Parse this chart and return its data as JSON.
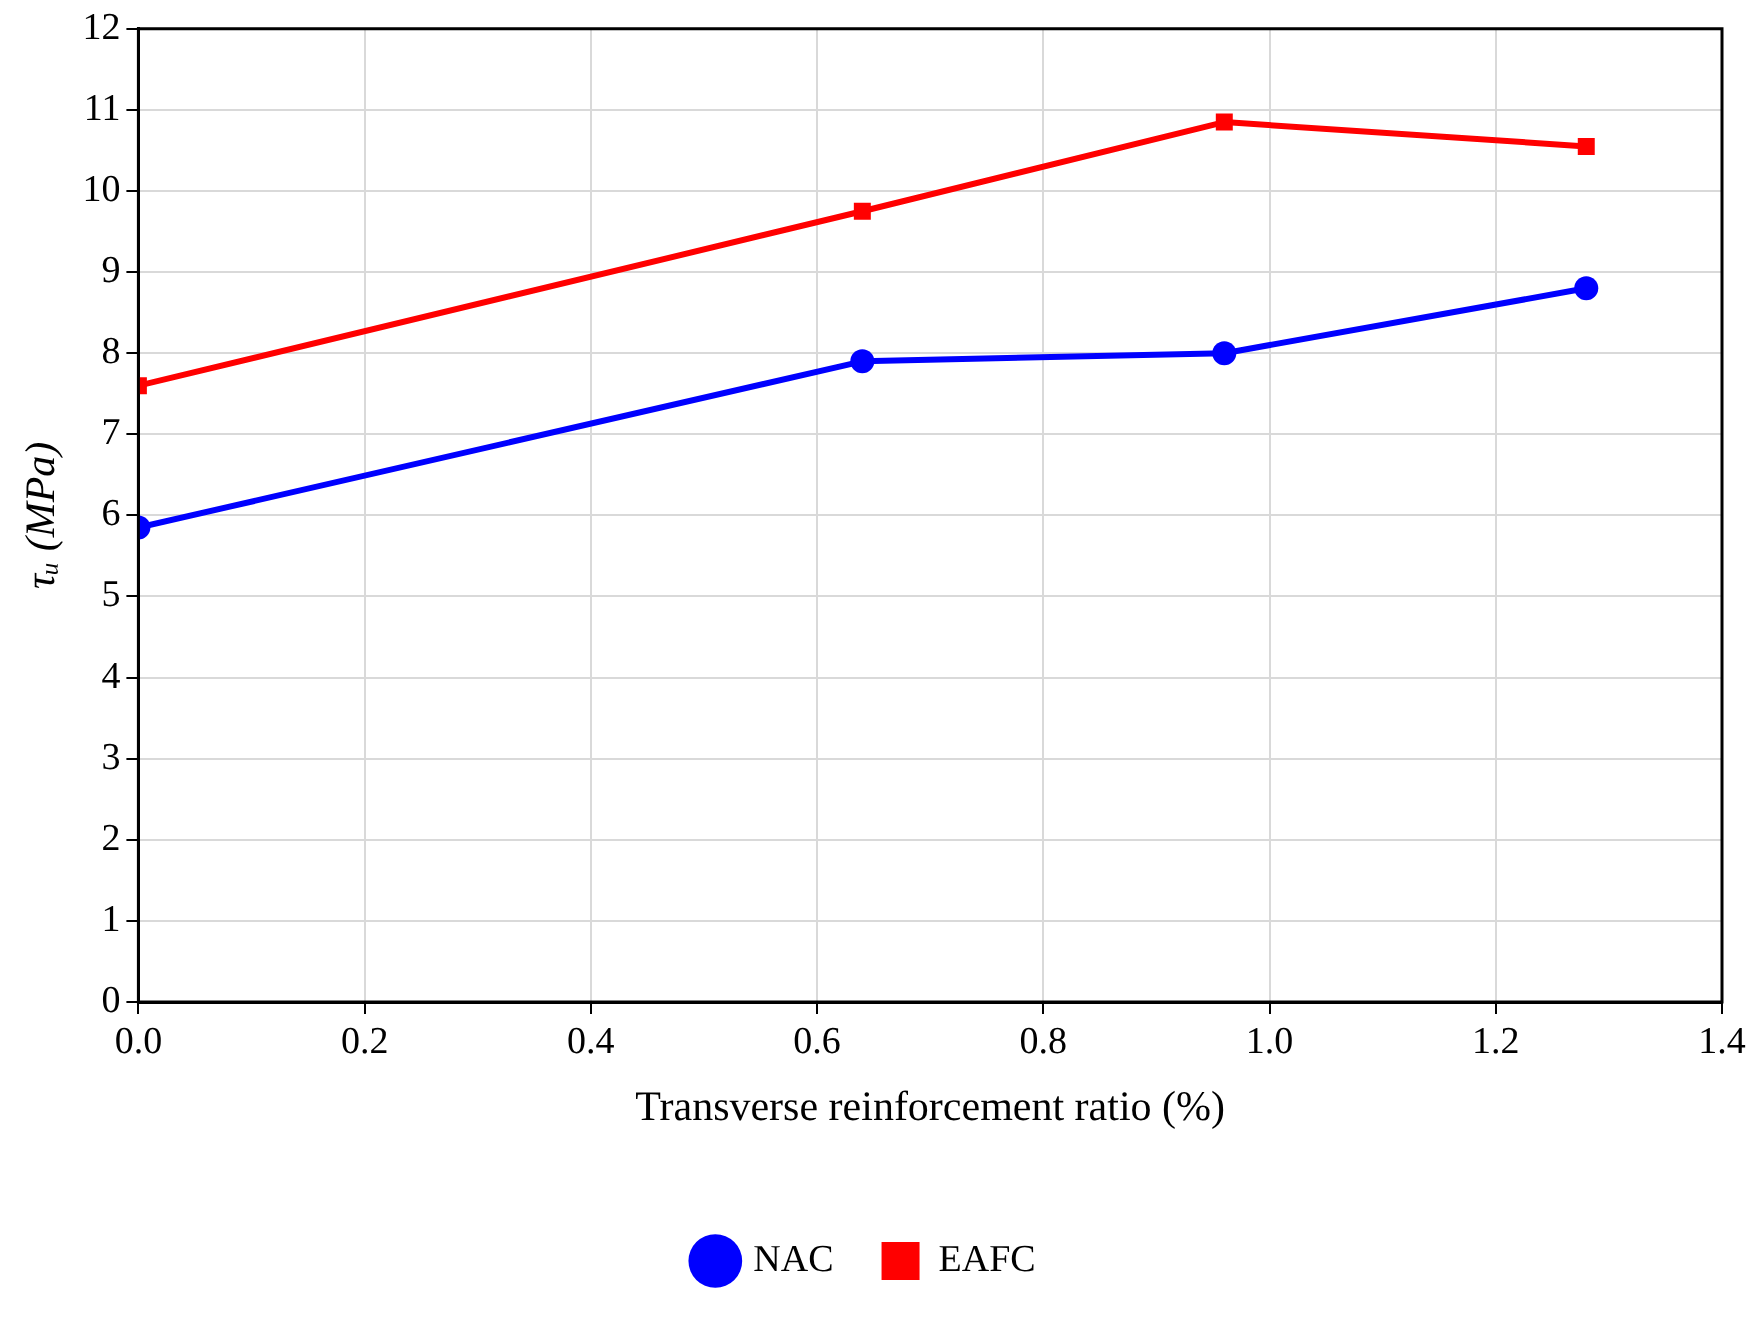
{
  "chart_data": {
    "type": "line",
    "xlabel": "Transverse reinforcement ratio (%)",
    "ylabel": "τᵤ (MPa)",
    "x": [
      0,
      0.64,
      0.96,
      1.28
    ],
    "series": [
      {
        "name": "NAC",
        "color": "#0000ff",
        "marker": "circle",
        "values": [
          5.85,
          7.9,
          8.0,
          8.8
        ]
      },
      {
        "name": "EAFC",
        "color": "#ff0000",
        "marker": "square",
        "values": [
          7.6,
          9.75,
          10.85,
          10.55
        ]
      }
    ],
    "xlim": [
      0,
      1.4
    ],
    "xticks": [
      {
        "value": 0,
        "label": "0.0"
      },
      {
        "value": 0.2,
        "label": "0.2"
      },
      {
        "value": 0.4,
        "label": "0.4"
      },
      {
        "value": 0.6,
        "label": "0.6"
      },
      {
        "value": 0.8,
        "label": "0.8"
      },
      {
        "value": 1,
        "label": "1.0"
      },
      {
        "value": 1.2,
        "label": "1.2"
      },
      {
        "value": 1.4,
        "label": "1.4"
      }
    ],
    "ylim": [
      0,
      12
    ],
    "yticks": [
      0,
      1,
      2,
      3,
      4,
      5,
      6,
      7,
      8,
      9,
      10,
      11,
      12
    ],
    "grid": true,
    "legend": "bottom",
    "line_style": "solid"
  }
}
